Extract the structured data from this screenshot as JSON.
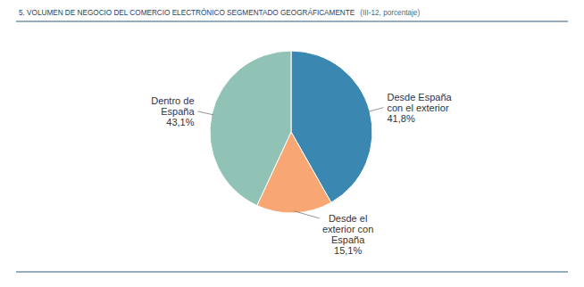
{
  "chart_data": {
    "type": "pie",
    "title": "5. VOLUMEN DE NEGOCIO DEL COMERCIO ELECTRÓNICO SEGMENTADO GEOGRÁFICAMENTE",
    "subtitle": "(III-12, porcentaje)",
    "categories": [
      "Desde España con el exterior",
      "Desde el exterior con España",
      "Dentro de España"
    ],
    "values": [
      41.8,
      15.1,
      43.1
    ],
    "value_labels": [
      "41,8%",
      "15,1%",
      "43,1%"
    ],
    "colors": [
      "#3a87b1",
      "#f8a673",
      "#90c3b5"
    ],
    "data_labels": true
  }
}
